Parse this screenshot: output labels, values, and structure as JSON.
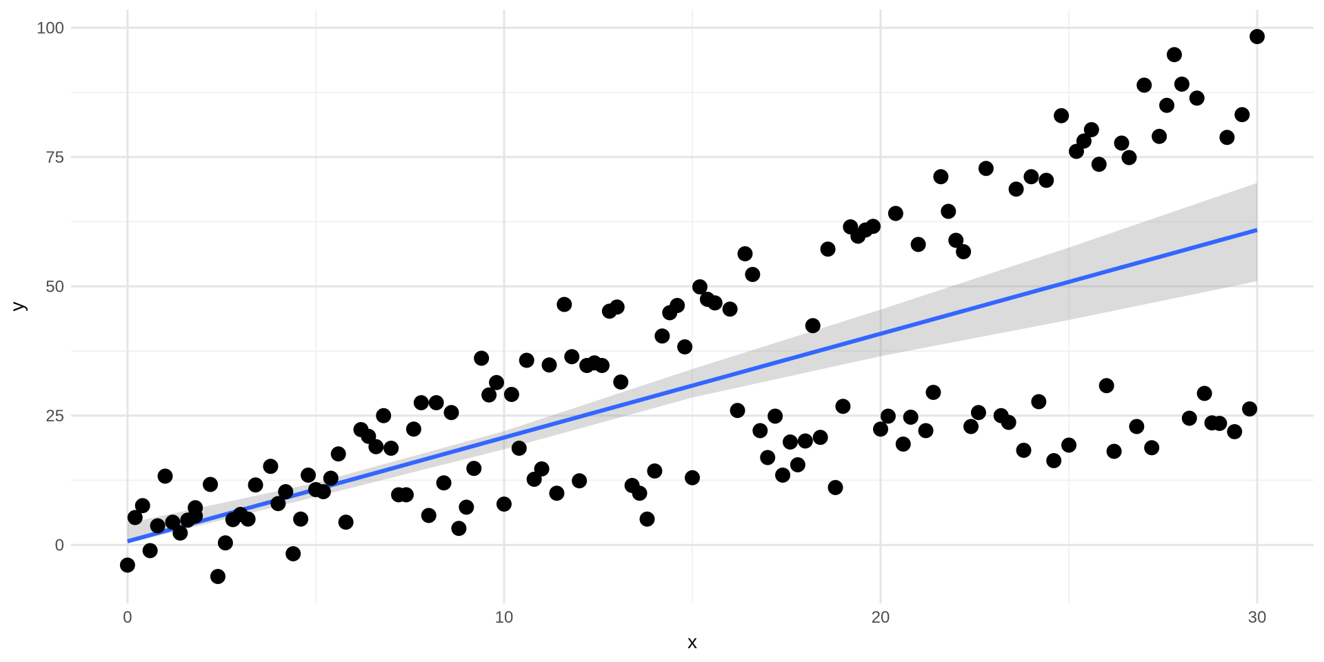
{
  "figure": {
    "background": "#ffffff",
    "theme": "minimal"
  },
  "chart_data": {
    "type": "scatter",
    "title": "",
    "xlabel": "x",
    "ylabel": "y",
    "xlim": [
      -1.5,
      31.5
    ],
    "ylim": [
      -11.3,
      103.5
    ],
    "x_ticks": [
      0,
      10,
      20,
      30
    ],
    "y_ticks": [
      0,
      25,
      50,
      75,
      100
    ],
    "x_minor_ticks": [
      5,
      15,
      25
    ],
    "y_minor_ticks": [
      12.5,
      37.5,
      62.5,
      87.5
    ],
    "grid": "on",
    "legend": "none",
    "point_color": "#000000",
    "point_radius": 11,
    "points": [
      [
        0,
        -3.9
      ],
      [
        0.2,
        5.3
      ],
      [
        0.4,
        7.6
      ],
      [
        0.6,
        -1.1
      ],
      [
        0.8,
        3.7
      ],
      [
        1,
        13.3
      ],
      [
        1.2,
        4.4
      ],
      [
        1.4,
        2.3
      ],
      [
        1.6,
        4.8
      ],
      [
        1.8,
        5.6
      ],
      [
        1.8,
        7.2
      ],
      [
        2.2,
        11.7
      ],
      [
        2.4,
        -6.1
      ],
      [
        2.6,
        0.4
      ],
      [
        2.8,
        4.9
      ],
      [
        3,
        5.9
      ],
      [
        3.2,
        5
      ],
      [
        3.4,
        11.6
      ],
      [
        3.8,
        15.2
      ],
      [
        4,
        8
      ],
      [
        4.2,
        10.3
      ],
      [
        4.4,
        -1.7
      ],
      [
        4.6,
        5
      ],
      [
        4.8,
        13.5
      ],
      [
        5,
        10.7
      ],
      [
        5.2,
        10.3
      ],
      [
        5.4,
        12.9
      ],
      [
        5.6,
        17.6
      ],
      [
        5.8,
        4.4
      ],
      [
        6.2,
        22.3
      ],
      [
        6.4,
        21
      ],
      [
        6.6,
        19
      ],
      [
        6.8,
        25
      ],
      [
        7,
        18.7
      ],
      [
        7.2,
        9.7
      ],
      [
        7.4,
        9.7
      ],
      [
        7.6,
        22.4
      ],
      [
        7.8,
        27.5
      ],
      [
        8,
        5.7
      ],
      [
        8.2,
        27.5
      ],
      [
        8.4,
        12
      ],
      [
        8.6,
        25.6
      ],
      [
        8.8,
        3.2
      ],
      [
        9,
        7.3
      ],
      [
        9.2,
        14.8
      ],
      [
        9.4,
        36.1
      ],
      [
        9.6,
        29
      ],
      [
        9.8,
        31.4
      ],
      [
        10,
        7.9
      ],
      [
        10.2,
        29.1
      ],
      [
        10.4,
        18.7
      ],
      [
        10.6,
        35.7
      ],
      [
        10.8,
        12.7
      ],
      [
        11,
        14.7
      ],
      [
        11.2,
        34.8
      ],
      [
        11.4,
        10
      ],
      [
        11.6,
        46.5
      ],
      [
        11.8,
        36.4
      ],
      [
        12,
        12.4
      ],
      [
        12.2,
        34.7
      ],
      [
        12.4,
        35.2
      ],
      [
        12.6,
        34.7
      ],
      [
        12.8,
        45.2
      ],
      [
        13,
        46
      ],
      [
        13.1,
        31.5
      ],
      [
        13.4,
        11.5
      ],
      [
        13.6,
        10
      ],
      [
        13.8,
        5
      ],
      [
        14,
        14.3
      ],
      [
        14.2,
        40.4
      ],
      [
        14.4,
        44.9
      ],
      [
        14.6,
        46.3
      ],
      [
        14.8,
        38.3
      ],
      [
        15,
        13
      ],
      [
        15.2,
        49.9
      ],
      [
        15.4,
        47.5
      ],
      [
        15.6,
        46.8
      ],
      [
        16,
        45.6
      ],
      [
        16.2,
        26
      ],
      [
        16.4,
        56.3
      ],
      [
        16.6,
        52.3
      ],
      [
        16.8,
        22.1
      ],
      [
        17,
        16.9
      ],
      [
        17.2,
        24.9
      ],
      [
        17.4,
        13.5
      ],
      [
        17.6,
        19.9
      ],
      [
        17.8,
        15.5
      ],
      [
        18,
        20.1
      ],
      [
        18.2,
        42.4
      ],
      [
        18.4,
        20.8
      ],
      [
        18.6,
        57.2
      ],
      [
        18.8,
        11.1
      ],
      [
        19,
        26.8
      ],
      [
        19.2,
        61.5
      ],
      [
        19.4,
        59.7
      ],
      [
        19.6,
        60.9
      ],
      [
        19.8,
        61.6
      ],
      [
        20,
        22.4
      ],
      [
        20.2,
        24.9
      ],
      [
        20.4,
        64.1
      ],
      [
        20.6,
        19.5
      ],
      [
        20.8,
        24.7
      ],
      [
        21,
        58.1
      ],
      [
        21.2,
        22.1
      ],
      [
        21.4,
        29.5
      ],
      [
        21.6,
        71.2
      ],
      [
        21.8,
        64.5
      ],
      [
        22,
        58.9
      ],
      [
        22.2,
        56.7
      ],
      [
        22.4,
        22.9
      ],
      [
        22.6,
        25.6
      ],
      [
        22.8,
        72.8
      ],
      [
        23.2,
        25
      ],
      [
        23.4,
        23.7
      ],
      [
        23.6,
        68.8
      ],
      [
        23.8,
        18.3
      ],
      [
        24,
        71.2
      ],
      [
        24.2,
        27.7
      ],
      [
        24.4,
        70.5
      ],
      [
        24.6,
        16.3
      ],
      [
        24.8,
        83
      ],
      [
        25,
        19.3
      ],
      [
        25.2,
        76.1
      ],
      [
        25.4,
        78.1
      ],
      [
        25.6,
        80.3
      ],
      [
        25.8,
        73.6
      ],
      [
        26,
        30.8
      ],
      [
        26.2,
        18.1
      ],
      [
        26.4,
        77.7
      ],
      [
        26.6,
        74.9
      ],
      [
        26.8,
        22.9
      ],
      [
        27,
        88.9
      ],
      [
        27.2,
        18.8
      ],
      [
        27.4,
        79
      ],
      [
        27.6,
        85
      ],
      [
        27.8,
        94.8
      ],
      [
        28,
        89.1
      ],
      [
        28.2,
        24.5
      ],
      [
        28.4,
        86.4
      ],
      [
        28.6,
        29.3
      ],
      [
        28.8,
        23.6
      ],
      [
        29,
        23.5
      ],
      [
        29.2,
        78.8
      ],
      [
        29.4,
        21.9
      ],
      [
        29.6,
        83.2
      ],
      [
        29.8,
        26.3
      ],
      [
        30,
        98.3
      ]
    ],
    "regression_line": {
      "x_start": 0,
      "y_start": 0.7,
      "x_end": 30,
      "y_end": 60.9,
      "color": "#3366FF",
      "width": 6
    },
    "ribbon": {
      "x": [
        0,
        5,
        10,
        15,
        20,
        25,
        30
      ],
      "upper": [
        4.2,
        12.0,
        22.0,
        34.0,
        45.5,
        57.5,
        70.0
      ],
      "lower": [
        0.3,
        9.3,
        18.5,
        28.5,
        36.5,
        43.5,
        51.0
      ],
      "color": "#999999",
      "opacity": 0.35
    },
    "colors": {
      "major_grid": "#E5E5E5",
      "minor_grid": "#F2F2F2",
      "tick_label": "#4D4D4D",
      "axis_title": "#000000"
    }
  }
}
